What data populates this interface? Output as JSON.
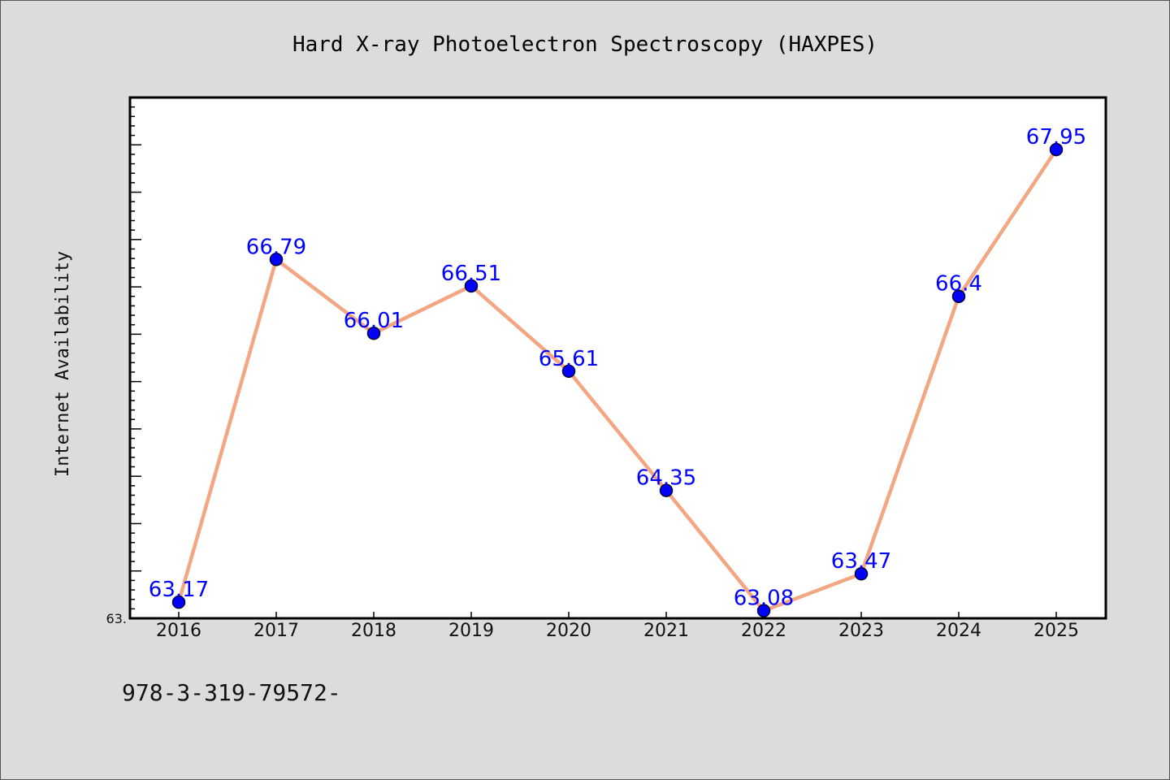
{
  "chart_data": {
    "type": "line",
    "title": "Hard X-ray Photoelectron Spectroscopy (HAXPES)",
    "xlabel": "",
    "ylabel": "Internet Availability",
    "categories": [
      "2016",
      "2017",
      "2018",
      "2019",
      "2020",
      "2021",
      "2022",
      "2023",
      "2024",
      "2025"
    ],
    "series": [
      {
        "values": [
          63.17,
          66.79,
          66.01,
          66.51,
          65.61,
          64.35,
          63.08,
          63.47,
          66.4,
          67.95
        ],
        "labels": [
          "63.17",
          "66.79",
          "66.01",
          "66.51",
          "65.61",
          "64.35",
          "63.08",
          "63.47",
          "66.4",
          "67.95"
        ]
      }
    ],
    "ylim": [
      63.0,
      68.5
    ],
    "ytick_labels": [
      "63."
    ],
    "y_minor_tick_step": 0.1,
    "y_major_tick_step": 0.5,
    "grid": false,
    "legend": "none",
    "colors": {
      "line": "#f4a582",
      "marker": "#0000ff",
      "marker_edge": "#000033",
      "data_label": "#0000ff",
      "background": "#dcdcdc",
      "plot_background": "#ffffff"
    }
  },
  "footer": {
    "text": "978-3-319-79572-"
  }
}
